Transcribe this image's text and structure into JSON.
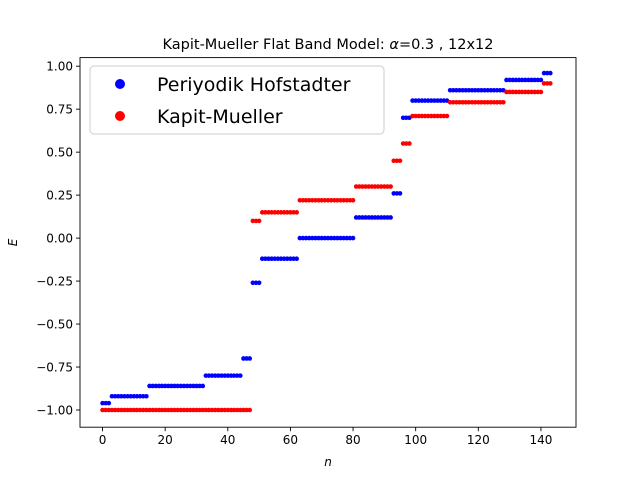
{
  "chart_data": {
    "type": "scatter",
    "title": "Kapit-Mueller Flat Band Model: α=0.3 , 12x12",
    "title_prefix": "Kapit-Mueller Flat Band Model: ",
    "title_alpha_symbol": "α",
    "title_suffix": "=0.3 , 12x12",
    "xlabel": "n",
    "ylabel": "E",
    "xlim": [
      -7.2,
      151.2
    ],
    "ylim": [
      -1.1,
      1.05
    ],
    "xticks": [
      0,
      20,
      40,
      60,
      80,
      100,
      120,
      140
    ],
    "xtick_labels": [
      "0",
      "20",
      "40",
      "60",
      "80",
      "100",
      "120",
      "140"
    ],
    "yticks": [
      -1.0,
      -0.75,
      -0.5,
      -0.25,
      0.0,
      0.25,
      0.5,
      0.75,
      1.0
    ],
    "ytick_labels": [
      "−1.00",
      "−0.75",
      "−0.50",
      "−0.25",
      "0.00",
      "0.25",
      "0.50",
      "0.75",
      "1.00"
    ],
    "grid": false,
    "legend_position": "top-left",
    "series": [
      {
        "name": "Periyodik Hofstadter",
        "color": "#0000ff",
        "plateaus": [
          {
            "start": 0,
            "count": 3,
            "value": -0.96
          },
          {
            "start": 3,
            "count": 12,
            "value": -0.92
          },
          {
            "start": 15,
            "count": 18,
            "value": -0.86
          },
          {
            "start": 33,
            "count": 12,
            "value": -0.8
          },
          {
            "start": 45,
            "count": 3,
            "value": -0.7
          },
          {
            "start": 48,
            "count": 3,
            "value": -0.26
          },
          {
            "start": 51,
            "count": 12,
            "value": -0.12
          },
          {
            "start": 63,
            "count": 18,
            "value": 0.0
          },
          {
            "start": 81,
            "count": 12,
            "value": 0.12
          },
          {
            "start": 93,
            "count": 3,
            "value": 0.26
          },
          {
            "start": 96,
            "count": 3,
            "value": 0.7
          },
          {
            "start": 99,
            "count": 12,
            "value": 0.8
          },
          {
            "start": 111,
            "count": 18,
            "value": 0.86
          },
          {
            "start": 129,
            "count": 12,
            "value": 0.92
          },
          {
            "start": 141,
            "count": 3,
            "value": 0.96
          }
        ]
      },
      {
        "name": "Kapit-Mueller",
        "color": "#ff0000",
        "plateaus": [
          {
            "start": 0,
            "count": 48,
            "value": -1.0
          },
          {
            "start": 48,
            "count": 3,
            "value": 0.1
          },
          {
            "start": 51,
            "count": 12,
            "value": 0.15
          },
          {
            "start": 63,
            "count": 18,
            "value": 0.22
          },
          {
            "start": 81,
            "count": 12,
            "value": 0.3
          },
          {
            "start": 93,
            "count": 3,
            "value": 0.45
          },
          {
            "start": 96,
            "count": 3,
            "value": 0.55
          },
          {
            "start": 99,
            "count": 12,
            "value": 0.71
          },
          {
            "start": 111,
            "count": 18,
            "value": 0.79
          },
          {
            "start": 129,
            "count": 12,
            "value": 0.85
          },
          {
            "start": 141,
            "count": 3,
            "value": 0.9
          }
        ]
      }
    ]
  }
}
